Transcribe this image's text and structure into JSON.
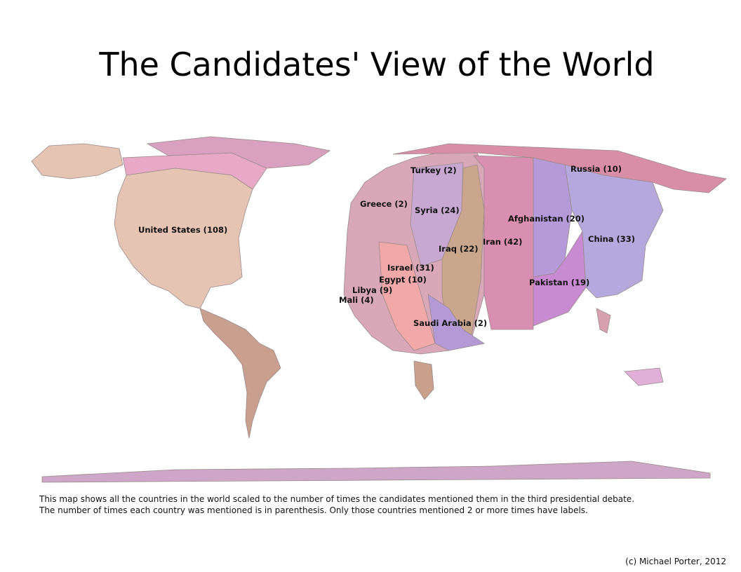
{
  "title": "The Candidates' View of the World",
  "map": {
    "labels": [
      "United States (108)",
      "Turkey (2)",
      "Russia (10)",
      "Greece (2)",
      "Syria (24)",
      "Afghanistan (20)",
      "China (33)",
      "Iran (42)",
      "Iraq (22)",
      "Israel (31)",
      "Egypt (10)",
      "Pakistan (19)",
      "Libya (9)",
      "Mali (4)",
      "Saudi Arabia (2)"
    ]
  },
  "description": [
    "This map shows all the countries in the world scaled to the number of times the candidates mentioned them in the third presidential debate.",
    "The number of times each country was mentioned is in parenthesis.  Only those countries mentioned 2 or more times have labels."
  ],
  "credit": "(c) Michael Porter, 2012"
}
